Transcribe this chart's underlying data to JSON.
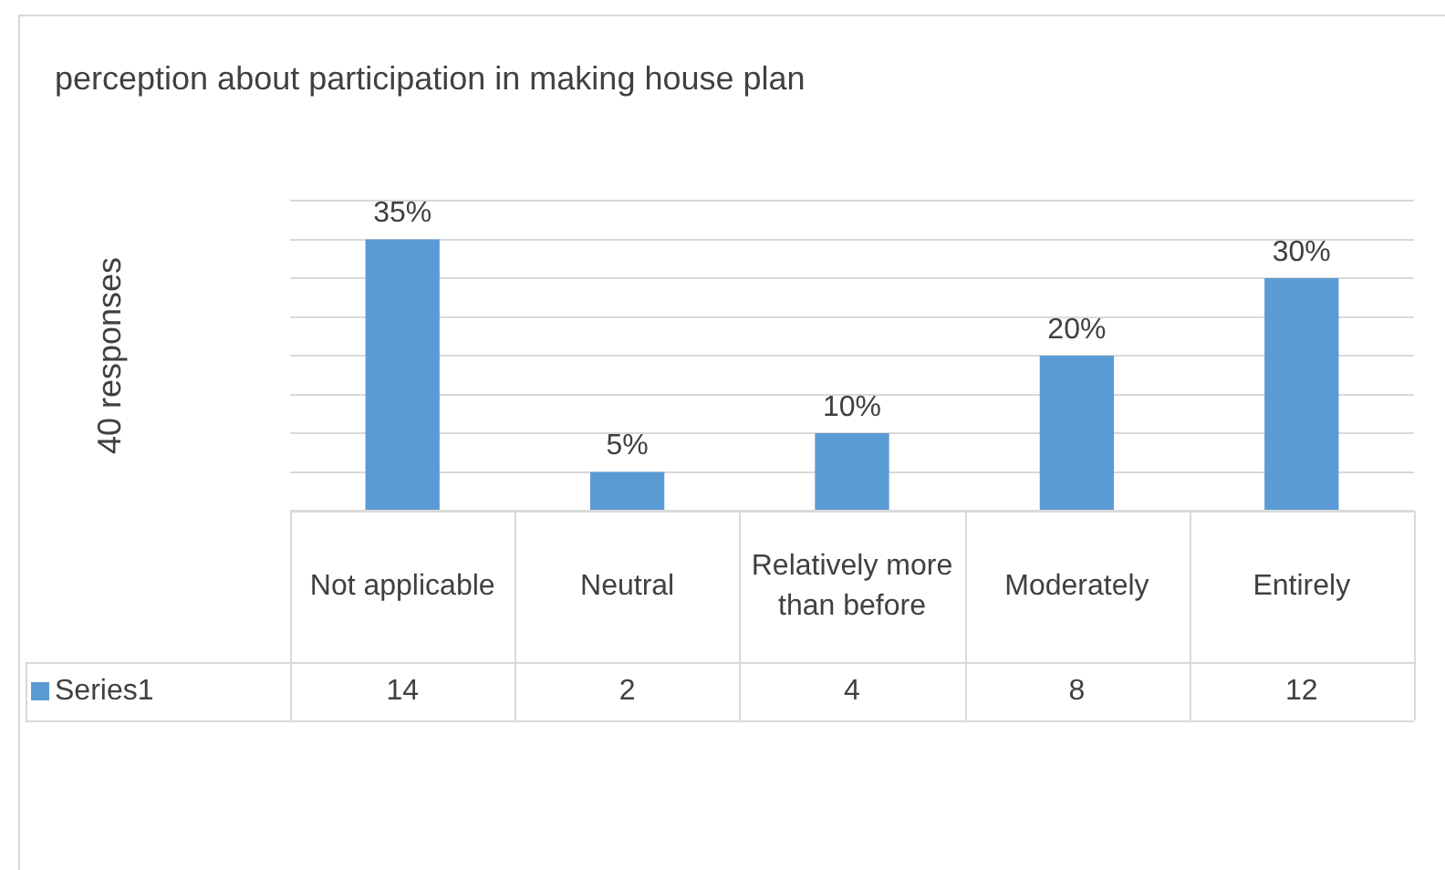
{
  "chart_data": {
    "type": "bar",
    "title": "perception about participation in making house plan",
    "ylabel": "40 responses",
    "categories": [
      "Not applicable",
      "Neutral",
      "Relatively more than before",
      "Moderately",
      "Entirely"
    ],
    "series": [
      {
        "name": "Series1",
        "color": "#5b9bd5",
        "values": [
          14,
          2,
          4,
          8,
          12
        ]
      }
    ],
    "annotations": [
      {
        "text": "35%",
        "x": "Not applicable",
        "y": 14
      },
      {
        "text": "5%",
        "x": "Neutral",
        "y": 2
      },
      {
        "text": "10%",
        "x": "Relatively more than before",
        "y": 4
      },
      {
        "text": "20%",
        "x": "Moderately",
        "y": 8
      },
      {
        "text": "30%",
        "x": "Entirely",
        "y": 12
      }
    ],
    "ylim": [
      0,
      16
    ],
    "yticks": [
      {
        "value": 0,
        "label": null
      },
      {
        "value": 2,
        "label": null
      },
      {
        "value": 4,
        "label": null
      },
      {
        "value": 6,
        "label": null
      },
      {
        "value": 8,
        "label": null
      },
      {
        "value": 10,
        "label": null
      },
      {
        "value": 12,
        "label": null
      },
      {
        "value": 14,
        "label": null
      },
      {
        "value": 16,
        "label": null
      }
    ],
    "grid": "y",
    "tick_labels": "x",
    "data_labels": true
  }
}
